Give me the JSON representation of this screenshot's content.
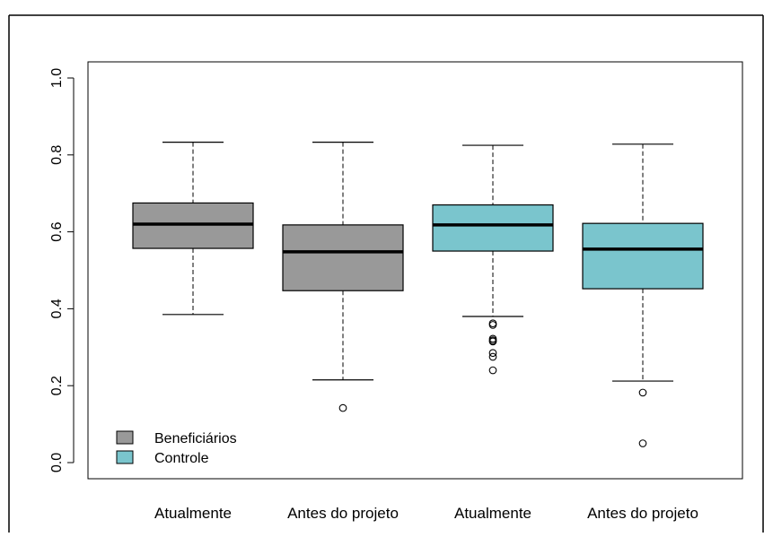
{
  "chart_data": {
    "type": "boxplot",
    "title": "",
    "xlabel": "",
    "ylabel": "",
    "ylim": [
      0.0,
      1.0
    ],
    "y_ticks": [
      "0.0",
      "0.2",
      "0.4",
      "0.6",
      "0.8",
      "1.0"
    ],
    "y_tick_values": [
      0.0,
      0.2,
      0.4,
      0.6,
      0.8,
      1.0
    ],
    "grid": false,
    "legend_position": "bottom-left",
    "categories": [
      "Atualmente",
      "Antes do projeto",
      "Atualmente",
      "Antes do projeto"
    ],
    "legend": [
      {
        "label": "Beneficiários",
        "color": "#999999"
      },
      {
        "label": "Controle",
        "color": "#7ac5cd"
      }
    ],
    "boxes": [
      {
        "category": "Atualmente",
        "group": "Beneficiários",
        "color": "#999999",
        "whisker_low": 0.385,
        "q1": 0.557,
        "median": 0.62,
        "q3": 0.675,
        "whisker_high": 0.833,
        "outliers": []
      },
      {
        "category": "Antes do projeto",
        "group": "Beneficiários",
        "color": "#999999",
        "whisker_low": 0.215,
        "q1": 0.447,
        "median": 0.548,
        "q3": 0.618,
        "whisker_high": 0.833,
        "outliers": [
          0.142
        ]
      },
      {
        "category": "Atualmente",
        "group": "Controle",
        "color": "#7ac5cd",
        "whisker_low": 0.38,
        "q1": 0.55,
        "median": 0.618,
        "q3": 0.67,
        "whisker_high": 0.825,
        "outliers": [
          0.362,
          0.358,
          0.322,
          0.318,
          0.315,
          0.285,
          0.275,
          0.24
        ]
      },
      {
        "category": "Antes do projeto",
        "group": "Controle",
        "color": "#7ac5cd",
        "whisker_low": 0.212,
        "q1": 0.452,
        "median": 0.555,
        "q3": 0.622,
        "whisker_high": 0.828,
        "outliers": [
          0.182,
          0.05
        ]
      }
    ]
  }
}
